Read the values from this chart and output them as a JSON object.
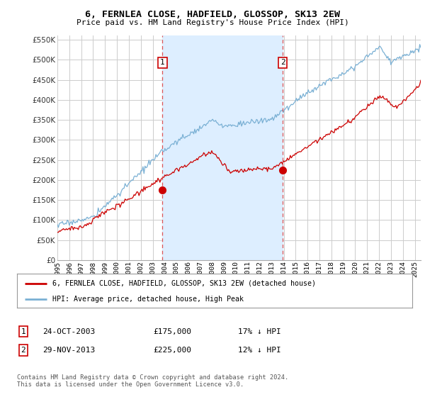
{
  "title": "6, FERNLEA CLOSE, HADFIELD, GLOSSOP, SK13 2EW",
  "subtitle": "Price paid vs. HM Land Registry's House Price Index (HPI)",
  "ylim": [
    0,
    560000
  ],
  "yticks": [
    0,
    50000,
    100000,
    150000,
    200000,
    250000,
    300000,
    350000,
    400000,
    450000,
    500000,
    550000
  ],
  "sale1_x": 2003.82,
  "sale1_y": 175000,
  "sale2_x": 2013.91,
  "sale2_y": 225000,
  "property_line_color": "#cc0000",
  "hpi_line_color": "#7ab0d4",
  "vline_color": "#dd4444",
  "shade_color": "#ddeeff",
  "legend_property_label": "6, FERNLEA CLOSE, HADFIELD, GLOSSOP, SK13 2EW (detached house)",
  "legend_hpi_label": "HPI: Average price, detached house, High Peak",
  "footer": "Contains HM Land Registry data © Crown copyright and database right 2024.\nThis data is licensed under the Open Government Licence v3.0.",
  "background_color": "#ffffff",
  "grid_color": "#cccccc",
  "table_rows": [
    {
      "num": "1",
      "date": "24-OCT-2003",
      "price": "£175,000",
      "pct": "17% ↓ HPI"
    },
    {
      "num": "2",
      "date": "29-NOV-2013",
      "price": "£225,000",
      "pct": "12% ↓ HPI"
    }
  ],
  "xmin": 1995,
  "xmax": 2025.5
}
